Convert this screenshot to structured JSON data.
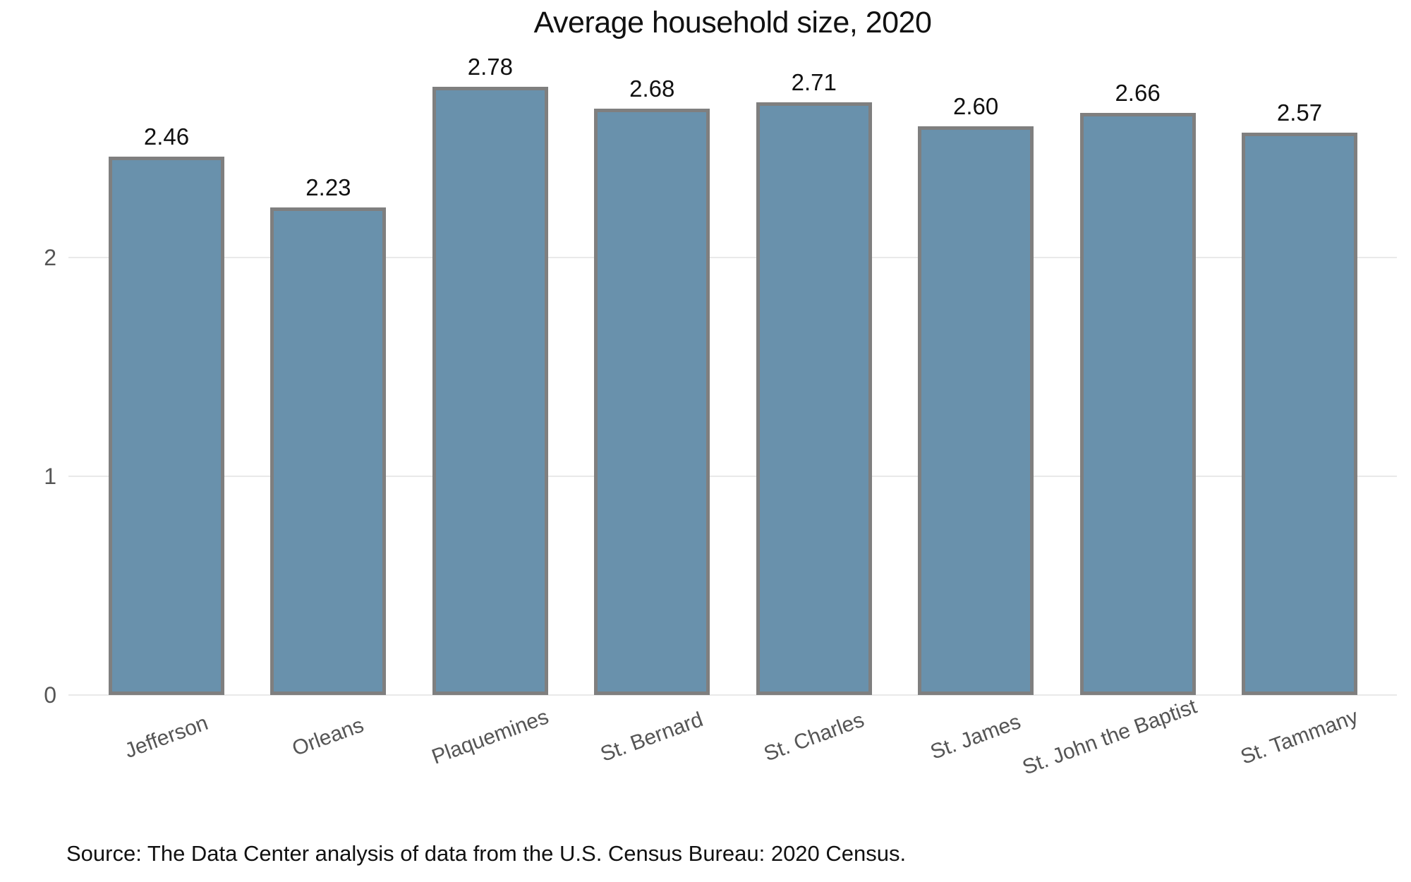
{
  "chart_data": {
    "type": "bar",
    "title": "Average household size, 2020",
    "categories": [
      "Jefferson",
      "Orleans",
      "Plaquemines",
      "St. Bernard",
      "St. Charles",
      "St. James",
      "St. John the Baptist",
      "St. Tammany"
    ],
    "values": [
      2.46,
      2.23,
      2.78,
      2.68,
      2.71,
      2.6,
      2.66,
      2.57
    ],
    "value_labels": [
      "2.46",
      "2.23",
      "2.78",
      "2.68",
      "2.71",
      "2.60",
      "2.66",
      "2.57"
    ],
    "y_ticks": [
      0,
      1,
      2
    ],
    "y_tick_labels": [
      "0",
      "1",
      "2"
    ],
    "ylim": [
      0,
      2.9
    ],
    "grid": true,
    "legend": "none",
    "bar_color": "#6991ac",
    "bar_border_color": "#7f7f7f",
    "grid_color": "#e9e9e9",
    "axis_text_color": "#555555",
    "text_color": "#111111",
    "source": "Source: The Data Center analysis of data from the U.S. Census Bureau: 2020 Census."
  }
}
